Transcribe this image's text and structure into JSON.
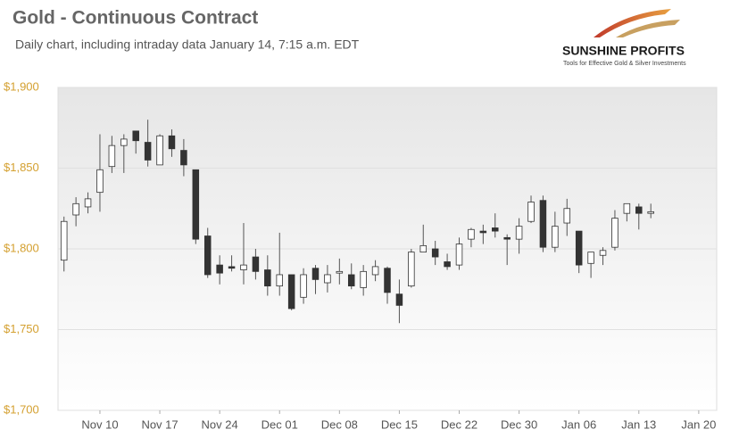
{
  "chart_data": {
    "type": "candlestick",
    "title": "Gold - Continuous Contract",
    "subtitle": "Daily chart, including intraday data January 14, 7:15 a.m. EDT",
    "logo": {
      "name": "SUNSHINE PROFITS",
      "tagline": "Tools for Effective Gold & Silver Investments"
    },
    "open": [
      1793,
      1821,
      1826,
      1835,
      1851,
      1864,
      1873,
      1866,
      1852,
      1870,
      1861,
      1849,
      1808,
      1790,
      1789,
      1787,
      1795,
      1787,
      1777,
      1784,
      1770,
      1788,
      1779,
      1785,
      1784,
      1776,
      1784,
      1788,
      1772,
      1777,
      1798,
      1800,
      1792,
      1790,
      1806,
      1811,
      1813,
      1807,
      1806,
      1817,
      1830,
      1801,
      1816,
      1811,
      1791,
      1796,
      1801,
      1822,
      1826,
      1822
    ],
    "high": [
      1820,
      1832,
      1835,
      1871,
      1870,
      1871,
      1873,
      1880,
      1871,
      1874,
      1868,
      1849,
      1813,
      1796,
      1796,
      1816,
      1800,
      1796,
      1810,
      1784,
      1788,
      1790,
      1790,
      1794,
      1791,
      1790,
      1793,
      1789,
      1781,
      1800,
      1815,
      1805,
      1797,
      1807,
      1813,
      1815,
      1822,
      1809,
      1819,
      1833,
      1833,
      1823,
      1831,
      1811,
      1798,
      1801,
      1824,
      1828,
      1828,
      1828
    ],
    "low": [
      1786,
      1814,
      1822,
      1823,
      1847,
      1847,
      1859,
      1851,
      1852,
      1857,
      1845,
      1803,
      1782,
      1778,
      1786,
      1778,
      1781,
      1771,
      1771,
      1762,
      1766,
      1772,
      1773,
      1778,
      1775,
      1771,
      1780,
      1766,
      1754,
      1776,
      1799,
      1790,
      1787,
      1787,
      1801,
      1803,
      1807,
      1790,
      1797,
      1816,
      1798,
      1798,
      1808,
      1785,
      1782,
      1790,
      1799,
      1817,
      1812,
      1819
    ],
    "close": [
      1817,
      1828,
      1831,
      1849,
      1864,
      1868,
      1867,
      1855,
      1870,
      1862,
      1852,
      1806,
      1784,
      1785,
      1788,
      1790,
      1786,
      1777,
      1784,
      1763,
      1784,
      1781,
      1784,
      1786,
      1777,
      1786,
      1789,
      1773,
      1765,
      1798,
      1802,
      1795,
      1789,
      1803,
      1812,
      1810,
      1811,
      1806,
      1814,
      1829,
      1801,
      1814,
      1825,
      1790,
      1798,
      1799,
      1819,
      1828,
      1822,
      1823
    ],
    "up_color": "#ffffff",
    "down_color": "#333333",
    "wick_color": "#555555",
    "xlim": [
      -0.5,
      54.5
    ],
    "xticks": [
      {
        "value": 3,
        "label": "Nov 10"
      },
      {
        "value": 8,
        "label": "Nov 17"
      },
      {
        "value": 13,
        "label": "Nov 24"
      },
      {
        "value": 18,
        "label": "Dec 01"
      },
      {
        "value": 23,
        "label": "Dec 08"
      },
      {
        "value": 28,
        "label": "Dec 15"
      },
      {
        "value": 33,
        "label": "Dec 22"
      },
      {
        "value": 38,
        "label": "Dec 30"
      },
      {
        "value": 43,
        "label": "Jan 06"
      },
      {
        "value": 48,
        "label": "Jan 13"
      },
      {
        "value": 53,
        "label": "Jan 20"
      }
    ],
    "ylim": [
      1700,
      1900
    ],
    "yticks": [
      {
        "value": 1700,
        "label": "$1,700"
      },
      {
        "value": 1750,
        "label": "$1,750"
      },
      {
        "value": 1800,
        "label": "$1,800"
      },
      {
        "value": 1850,
        "label": "$1,850"
      },
      {
        "value": 1900,
        "label": "$1,900"
      }
    ],
    "grid": true
  }
}
